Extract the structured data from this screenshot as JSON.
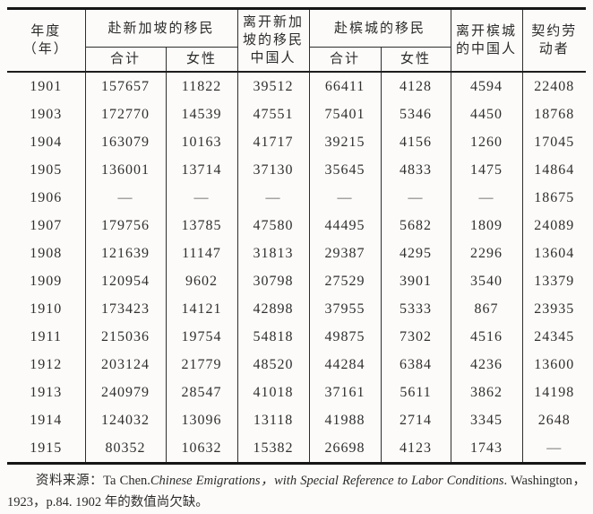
{
  "table": {
    "header": {
      "year": "年度\n（年）",
      "to_singapore": "赴新加坡的移民",
      "leave_singapore": "离开新加\n坡的移民\n中国人",
      "to_penang": "赴槟城的移民",
      "leave_penang": "离开槟城\n的中国人",
      "contract_labor": "契约劳\n动者",
      "subtotal": "合计",
      "female": "女性"
    },
    "rows": [
      [
        "1901",
        "157657",
        "11822",
        "39512",
        "66411",
        "4128",
        "4594",
        "22408"
      ],
      [
        "1903",
        "172770",
        "14539",
        "47551",
        "75401",
        "5346",
        "4450",
        "18768"
      ],
      [
        "1904",
        "163079",
        "10163",
        "41717",
        "39215",
        "4156",
        "1260",
        "17045"
      ],
      [
        "1905",
        "136001",
        "13714",
        "37130",
        "35645",
        "4833",
        "1475",
        "14864"
      ],
      [
        "1906",
        "—",
        "—",
        "—",
        "—",
        "—",
        "—",
        "18675"
      ],
      [
        "1907",
        "179756",
        "13785",
        "47580",
        "44495",
        "5682",
        "1809",
        "24089"
      ],
      [
        "1908",
        "121639",
        "11147",
        "31813",
        "29387",
        "4295",
        "2296",
        "13604"
      ],
      [
        "1909",
        "120954",
        "9602",
        "30798",
        "27529",
        "3901",
        "3540",
        "13379"
      ],
      [
        "1910",
        "173423",
        "14121",
        "42898",
        "37955",
        "5333",
        "867",
        "23935"
      ],
      [
        "1911",
        "215036",
        "19754",
        "54818",
        "49875",
        "7302",
        "4516",
        "24345"
      ],
      [
        "1912",
        "203124",
        "21779",
        "48520",
        "44284",
        "6384",
        "4236",
        "13600"
      ],
      [
        "1913",
        "240979",
        "28547",
        "41018",
        "37161",
        "5611",
        "3862",
        "14198"
      ],
      [
        "1914",
        "124032",
        "13096",
        "13118",
        "41988",
        "2714",
        "3345",
        "2648"
      ],
      [
        "1915",
        "80352",
        "10632",
        "15382",
        "26698",
        "4123",
        "1743",
        "—"
      ]
    ],
    "missing_value_mark": "—"
  },
  "footnote": {
    "line1_prefix": "资料来源：Ta Chen.",
    "line1_italic": "Chinese Emigrations，with Special Reference to Labor Conditions",
    "line1_suffix": ". Washington，",
    "line2": "1923，p.84. 1902 年的数值尚欠缺。"
  },
  "colors": {
    "ink": "#262626",
    "paper": "#fcfbf9",
    "rule": "#1d1d1d"
  }
}
